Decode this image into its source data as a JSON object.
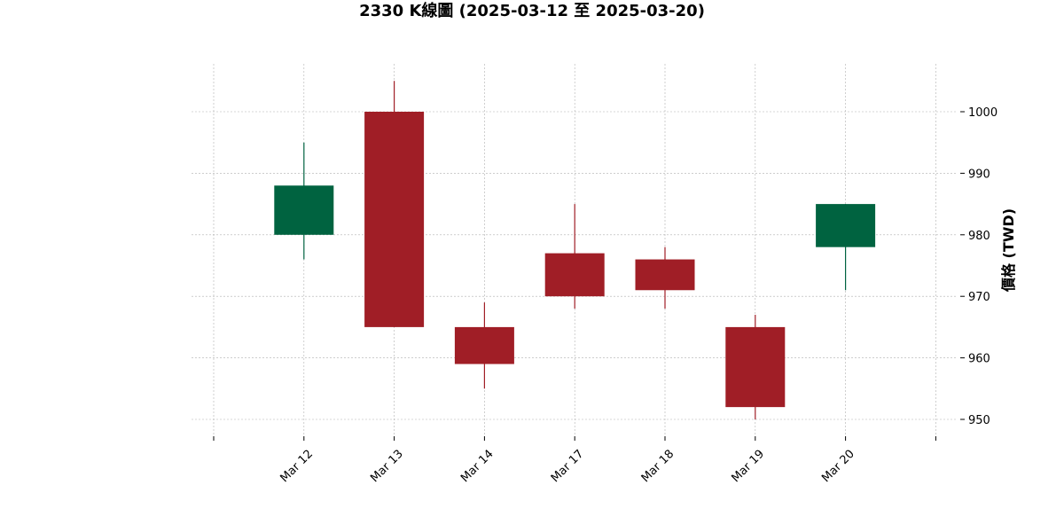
{
  "chart_data": {
    "type": "candlestick",
    "title": "2330 K線圖 (2025-03-12 至 2025-03-20)",
    "ylabel": "價格 (TWD)",
    "xlabel": "",
    "grid": true,
    "ylim": [
      947,
      1008
    ],
    "yticks": [
      950,
      960,
      970,
      980,
      990,
      1000
    ],
    "colors": {
      "up": "#006340",
      "down": "#a01e26"
    },
    "candles": [
      {
        "date": "Mar 12",
        "open": 980,
        "high": 995,
        "low": 976,
        "close": 988
      },
      {
        "date": "Mar 13",
        "open": 1000,
        "high": 1005,
        "low": 965,
        "close": 965
      },
      {
        "date": "Mar 14",
        "open": 965,
        "high": 969,
        "low": 955,
        "close": 959
      },
      {
        "date": "Mar 17",
        "open": 977,
        "high": 985,
        "low": 968,
        "close": 970
      },
      {
        "date": "Mar 18",
        "open": 976,
        "high": 978,
        "low": 968,
        "close": 971
      },
      {
        "date": "Mar 19",
        "open": 965,
        "high": 967,
        "low": 950,
        "close": 952
      },
      {
        "date": "Mar 20",
        "open": 978,
        "high": 985,
        "low": 971,
        "close": 985
      }
    ]
  }
}
